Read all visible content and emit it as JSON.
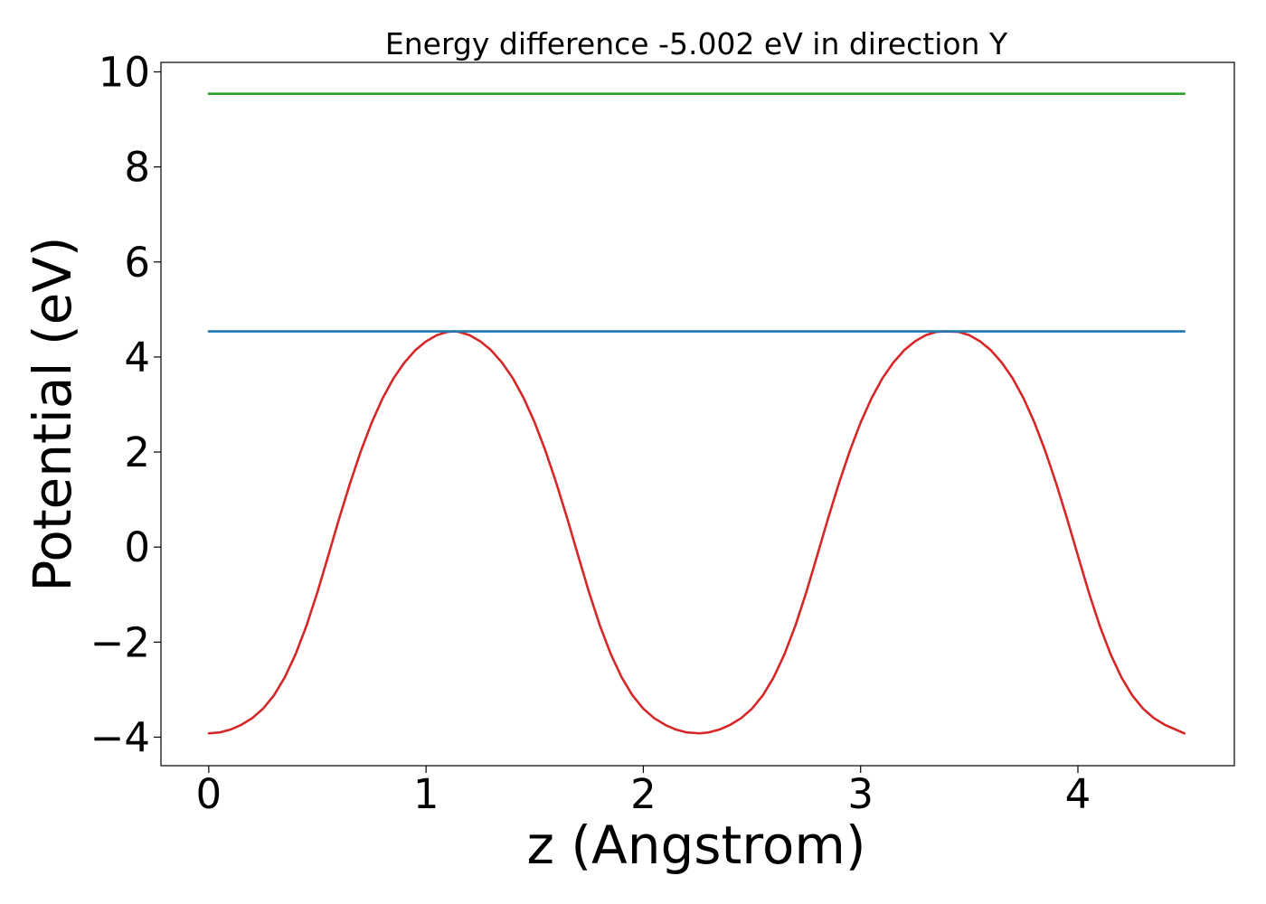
{
  "chart_data": {
    "type": "line",
    "title": "Energy difference -5.002 eV in direction Y",
    "xlabel": "z (Angstrom)",
    "ylabel": "Potential (eV)",
    "xlim": [
      -0.22,
      4.72
    ],
    "ylim": [
      -4.6,
      10.2
    ],
    "xticks": [
      0,
      1,
      2,
      3,
      4
    ],
    "xtick_labels": [
      "0",
      "1",
      "2",
      "3",
      "4"
    ],
    "yticks": [
      -4,
      -2,
      0,
      2,
      4,
      6,
      8,
      10
    ],
    "ytick_labels": [
      "−4",
      "−2",
      "0",
      "2",
      "4",
      "6",
      "8",
      "10"
    ],
    "grid": false,
    "legend": "none",
    "series": [
      {
        "color": "#d62728",
        "style": "curve",
        "x": [
          0.0,
          0.05,
          0.1,
          0.15,
          0.2,
          0.25,
          0.3,
          0.35,
          0.4,
          0.45,
          0.5,
          0.55,
          0.6,
          0.65,
          0.7,
          0.75,
          0.8,
          0.85,
          0.9,
          0.95,
          1.0,
          1.05,
          1.1,
          1.13,
          1.15,
          1.2,
          1.25,
          1.3,
          1.35,
          1.4,
          1.45,
          1.5,
          1.55,
          1.6,
          1.65,
          1.7,
          1.75,
          1.8,
          1.85,
          1.9,
          1.95,
          2.0,
          2.05,
          2.1,
          2.15,
          2.2,
          2.26,
          2.3,
          2.35,
          2.4,
          2.45,
          2.5,
          2.55,
          2.6,
          2.65,
          2.7,
          2.75,
          2.8,
          2.85,
          2.9,
          2.95,
          3.0,
          3.05,
          3.1,
          3.15,
          3.2,
          3.25,
          3.3,
          3.35,
          3.39,
          3.45,
          3.5,
          3.55,
          3.6,
          3.65,
          3.7,
          3.75,
          3.8,
          3.85,
          3.9,
          3.95,
          4.0,
          4.05,
          4.1,
          4.15,
          4.2,
          4.25,
          4.3,
          4.35,
          4.4,
          4.45,
          4.49
        ],
        "y": [
          -3.92,
          -3.9,
          -3.84,
          -3.74,
          -3.6,
          -3.4,
          -3.12,
          -2.74,
          -2.25,
          -1.65,
          -0.95,
          -0.18,
          0.6,
          1.34,
          2.02,
          2.62,
          3.13,
          3.55,
          3.88,
          4.14,
          4.33,
          4.46,
          4.53,
          4.54,
          4.53,
          4.46,
          4.33,
          4.14,
          3.88,
          3.55,
          3.13,
          2.62,
          2.02,
          1.34,
          0.6,
          -0.18,
          -0.95,
          -1.65,
          -2.25,
          -2.74,
          -3.12,
          -3.4,
          -3.6,
          -3.74,
          -3.84,
          -3.9,
          -3.92,
          -3.9,
          -3.84,
          -3.74,
          -3.6,
          -3.4,
          -3.12,
          -2.74,
          -2.25,
          -1.65,
          -0.95,
          -0.18,
          0.6,
          1.34,
          2.02,
          2.62,
          3.13,
          3.55,
          3.88,
          4.14,
          4.33,
          4.46,
          4.53,
          4.54,
          4.53,
          4.46,
          4.33,
          4.14,
          3.88,
          3.55,
          3.13,
          2.62,
          2.02,
          1.34,
          0.6,
          -0.18,
          -0.95,
          -1.65,
          -2.25,
          -2.74,
          -3.12,
          -3.4,
          -3.6,
          -3.74,
          -3.84,
          -3.92
        ]
      },
      {
        "color": "#1f77b4",
        "style": "hline",
        "x": [
          0.0,
          4.49
        ],
        "y": [
          4.54,
          4.54
        ]
      },
      {
        "color": "#2ca02c",
        "style": "hline",
        "x": [
          0.0,
          4.49
        ],
        "y": [
          9.54,
          9.54
        ]
      }
    ]
  }
}
